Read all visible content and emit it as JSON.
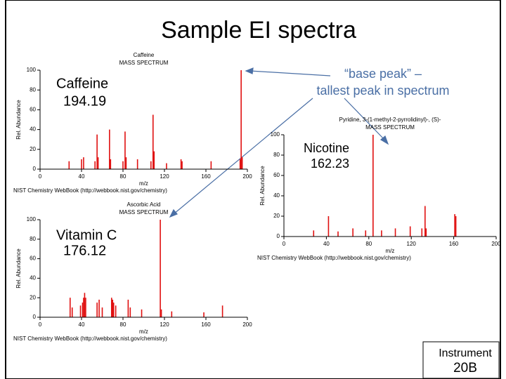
{
  "slide": {
    "title": "Sample EI spectra",
    "callout": [
      "“base peak” –",
      "tallest peak in spectrum"
    ],
    "badge": [
      "Instrument",
      "20B"
    ]
  },
  "chart_data": [
    {
      "type": "stem",
      "title": "Caffeine",
      "subtitle": "MASS SPECTRUM",
      "xlabel": "m/z",
      "ylabel": "Rel. Abundance",
      "source": "NIST Chemistry WebBook (http://webbook.nist.gov/chemistry)",
      "annotations": [
        "Caffeine",
        "194.19"
      ],
      "color": "#e01010",
      "x": [
        28,
        40,
        42,
        53,
        55,
        56,
        67,
        68,
        80,
        82,
        83,
        94,
        107,
        109,
        110,
        122,
        136,
        137,
        165,
        193,
        194,
        195
      ],
      "values": [
        8,
        10,
        12,
        8,
        35,
        12,
        40,
        10,
        8,
        38,
        12,
        10,
        8,
        55,
        18,
        6,
        10,
        8,
        8,
        10,
        100,
        12
      ],
      "xlim": [
        0,
        200
      ],
      "xticks": [
        0,
        40,
        80,
        120,
        160,
        200
      ],
      "ylim": [
        0,
        100
      ],
      "yticks": [
        0,
        20,
        40,
        60,
        80,
        100
      ]
    },
    {
      "type": "stem",
      "title": "Pyridine, 3-(1-methyl-2-pyrrolidinyl)-, (S)-",
      "subtitle": "MASS SPECTRUM",
      "xlabel": "m/z",
      "ylabel": "Rel. Abundance",
      "source": "NIST Chemistry WebBook (http://webbook.nist.gov/chemistry)",
      "annotations": [
        "Nicotine",
        "162.23"
      ],
      "color": "#e01010",
      "x": [
        28,
        42,
        51,
        65,
        77,
        84,
        92,
        105,
        119,
        130,
        133,
        134,
        161,
        162
      ],
      "values": [
        6,
        20,
        5,
        8,
        6,
        100,
        6,
        8,
        10,
        8,
        30,
        8,
        22,
        20
      ],
      "xlim": [
        0,
        200
      ],
      "xticks": [
        0,
        40,
        80,
        120,
        160,
        200
      ],
      "ylim": [
        0,
        100
      ],
      "yticks": [
        0,
        20,
        40,
        60,
        80,
        100
      ]
    },
    {
      "type": "stem",
      "title": "Ascorbic Acid",
      "subtitle": "MASS SPECTRUM",
      "xlabel": "m/z",
      "ylabel": "Rel. Abundance",
      "source": "NIST Chemistry WebBook (http://webbook.nist.gov/chemistry)",
      "annotations": [
        "Vitamin C",
        "176.12"
      ],
      "color": "#e01010",
      "x": [
        29,
        31,
        39,
        41,
        42,
        43,
        44,
        55,
        57,
        60,
        69,
        70,
        71,
        73,
        85,
        87,
        98,
        116,
        117,
        127,
        158,
        176
      ],
      "values": [
        20,
        10,
        12,
        15,
        20,
        25,
        20,
        15,
        18,
        10,
        20,
        18,
        15,
        12,
        18,
        10,
        8,
        100,
        8,
        6,
        5,
        12
      ],
      "xlim": [
        0,
        200
      ],
      "xticks": [
        0,
        40,
        80,
        120,
        160,
        200
      ],
      "ylim": [
        0,
        100
      ],
      "yticks": [
        0,
        20,
        40,
        60,
        80,
        100
      ]
    }
  ]
}
